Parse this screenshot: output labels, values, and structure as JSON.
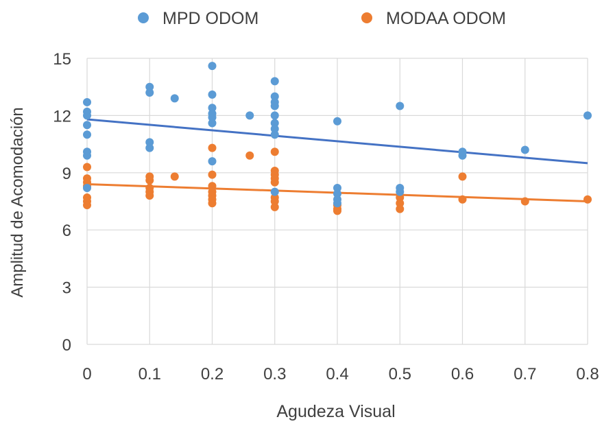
{
  "chart_data": {
    "type": "scatter",
    "xlabel": "Agudeza Visual",
    "ylabel": "Amplitud de Acomodación",
    "xlim": [
      0,
      0.8
    ],
    "ylim": [
      0,
      15
    ],
    "x_ticks": [
      "0",
      "0.1",
      "0.2",
      "0.3",
      "0.4",
      "0.5",
      "0.6",
      "0.7",
      "0.8"
    ],
    "y_ticks": [
      "0",
      "3",
      "6",
      "9",
      "12",
      "15"
    ],
    "x_tick_values": [
      0,
      0.1,
      0.2,
      0.3,
      0.4,
      0.5,
      0.6,
      0.7,
      0.8
    ],
    "y_tick_values": [
      0,
      3,
      6,
      9,
      12,
      15
    ],
    "grid": true,
    "legend_position": "top",
    "series": [
      {
        "name": "MPD ODOM",
        "color": "#5B9BD5",
        "points": [
          [
            0,
            12.7
          ],
          [
            0,
            12.2
          ],
          [
            0,
            12.0
          ],
          [
            0,
            11.5
          ],
          [
            0,
            11.0
          ],
          [
            0,
            10.1
          ],
          [
            0,
            9.9
          ],
          [
            0,
            8.2
          ],
          [
            0.1,
            13.5
          ],
          [
            0.1,
            13.2
          ],
          [
            0.1,
            10.6
          ],
          [
            0.1,
            10.3
          ],
          [
            0.14,
            12.9
          ],
          [
            0.2,
            14.6
          ],
          [
            0.2,
            13.1
          ],
          [
            0.2,
            12.4
          ],
          [
            0.2,
            12.1
          ],
          [
            0.2,
            11.9
          ],
          [
            0.2,
            11.6
          ],
          [
            0.2,
            9.6
          ],
          [
            0.26,
            12.0
          ],
          [
            0.3,
            13.8
          ],
          [
            0.3,
            13.0
          ],
          [
            0.3,
            12.7
          ],
          [
            0.3,
            12.5
          ],
          [
            0.3,
            12.0
          ],
          [
            0.3,
            11.6
          ],
          [
            0.3,
            11.3
          ],
          [
            0.3,
            11.0
          ],
          [
            0.3,
            8.0
          ],
          [
            0.4,
            11.7
          ],
          [
            0.4,
            8.2
          ],
          [
            0.4,
            7.9
          ],
          [
            0.4,
            7.6
          ],
          [
            0.4,
            7.4
          ],
          [
            0.5,
            12.5
          ],
          [
            0.5,
            8.2
          ],
          [
            0.5,
            8.0
          ],
          [
            0.6,
            10.1
          ],
          [
            0.6,
            9.9
          ],
          [
            0.7,
            10.2
          ],
          [
            0.8,
            12.0
          ]
        ],
        "trendline": {
          "x": [
            0,
            0.8
          ],
          "y": [
            11.8,
            9.5
          ],
          "color": "#4472C4"
        }
      },
      {
        "name": "MODAA ODOM",
        "color": "#ED7D31",
        "points": [
          [
            0,
            9.3
          ],
          [
            0,
            8.7
          ],
          [
            0,
            8.5
          ],
          [
            0,
            8.3
          ],
          [
            0,
            7.7
          ],
          [
            0,
            7.5
          ],
          [
            0,
            7.3
          ],
          [
            0.1,
            8.8
          ],
          [
            0.1,
            8.6
          ],
          [
            0.1,
            8.2
          ],
          [
            0.1,
            8.0
          ],
          [
            0.1,
            7.8
          ],
          [
            0.14,
            8.8
          ],
          [
            0.2,
            10.3
          ],
          [
            0.2,
            8.9
          ],
          [
            0.2,
            8.3
          ],
          [
            0.2,
            8.0
          ],
          [
            0.2,
            7.8
          ],
          [
            0.2,
            7.6
          ],
          [
            0.2,
            7.4
          ],
          [
            0.26,
            9.9
          ],
          [
            0.3,
            10.1
          ],
          [
            0.3,
            9.1
          ],
          [
            0.3,
            8.9
          ],
          [
            0.3,
            8.7
          ],
          [
            0.3,
            8.5
          ],
          [
            0.3,
            7.7
          ],
          [
            0.3,
            7.5
          ],
          [
            0.3,
            7.2
          ],
          [
            0.4,
            7.3
          ],
          [
            0.4,
            7.1
          ],
          [
            0.4,
            7.0
          ],
          [
            0.5,
            7.7
          ],
          [
            0.5,
            7.4
          ],
          [
            0.5,
            7.1
          ],
          [
            0.6,
            8.8
          ],
          [
            0.6,
            7.6
          ],
          [
            0.7,
            7.5
          ],
          [
            0.8,
            7.6
          ]
        ],
        "trendline": {
          "x": [
            0,
            0.8
          ],
          "y": [
            8.4,
            7.5
          ],
          "color": "#ED7D31"
        }
      }
    ]
  }
}
